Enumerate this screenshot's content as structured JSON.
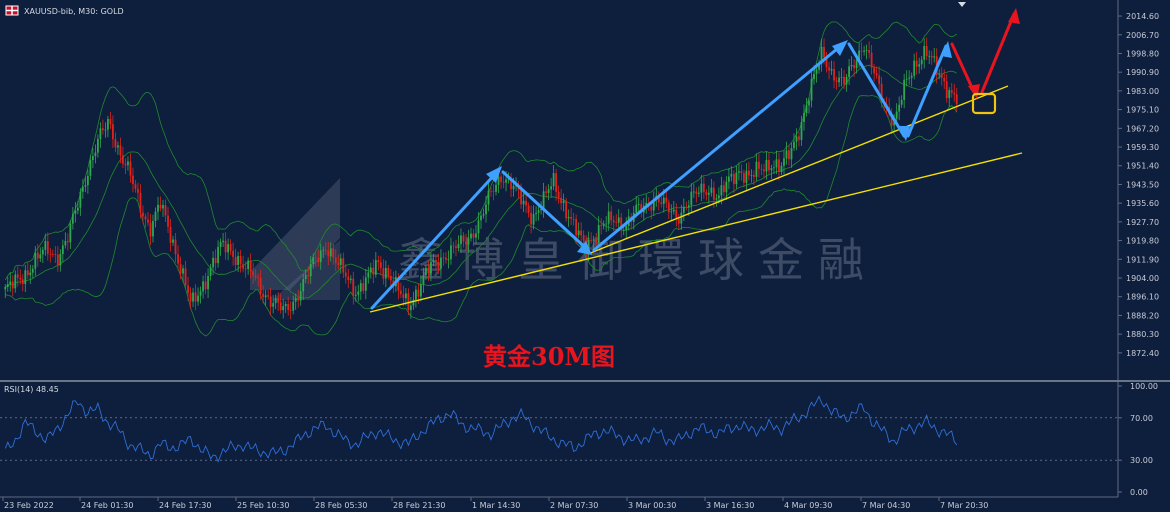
{
  "header": {
    "symbol_info": "XAUUSD-bib, M30:  GOLD",
    "flag_icon": "uk-flag-icon"
  },
  "annotation": "黄金30M图",
  "watermark": "鑫博皇御環球金融",
  "colors": {
    "background": "#0e1e3d",
    "bull_candle": "#2fa84f",
    "bear_candle": "#e0241b",
    "bollinger": "#1f8a2e",
    "trendline": "#f5e000",
    "wave_arrow": "#3fa0ff",
    "forecast_arrow": "#e8141e",
    "target_box": "#f1c40f",
    "rsi_line": "#2f6fd6"
  },
  "chart_data": {
    "type": "line",
    "title": "XAUUSD-bib, M30:  GOLD",
    "y_ticks": [
      "2014.60",
      "2006.70",
      "1998.80",
      "1990.90",
      "1983.00",
      "1975.10",
      "1967.20",
      "1959.30",
      "1951.40",
      "1943.50",
      "1935.60",
      "1927.70",
      "1919.80",
      "1911.90",
      "1904.00",
      "1896.10",
      "1888.20",
      "1880.30",
      "1872.40"
    ],
    "ylim": [
      1866.0,
      2018.0
    ],
    "x_ticks": [
      "23 Feb 2022",
      "24 Feb 01:30",
      "24 Feb 17:30",
      "25 Feb 10:30",
      "28 Feb 05:30",
      "28 Feb 21:30",
      "1 Mar 14:30",
      "2 Mar 07:30",
      "3 Mar 00:30",
      "3 Mar 16:30",
      "4 Mar 09:30",
      "7 Mar 04:30",
      "7 Mar 20:30"
    ],
    "price_path": [
      1899,
      1902,
      1906,
      1912,
      1916,
      1913,
      1920,
      1935,
      1950,
      1962,
      1970,
      1958,
      1948,
      1935,
      1925,
      1935,
      1922,
      1908,
      1892,
      1900,
      1910,
      1918,
      1915,
      1909,
      1905,
      1898,
      1893,
      1890,
      1895,
      1903,
      1912,
      1918,
      1910,
      1905,
      1898,
      1903,
      1911,
      1906,
      1898,
      1893,
      1900,
      1908,
      1912,
      1915,
      1918,
      1922,
      1929,
      1940,
      1948,
      1943,
      1936,
      1930,
      1936,
      1945,
      1935,
      1925,
      1918,
      1922,
      1927,
      1929,
      1926,
      1932,
      1935,
      1938,
      1933,
      1930,
      1936,
      1940,
      1942,
      1938,
      1945,
      1950,
      1946,
      1950,
      1953,
      1950,
      1958,
      1970,
      1985,
      2000,
      1990,
      1985,
      1995,
      2003,
      1990,
      1978,
      1970,
      1985,
      1995,
      2000,
      1992,
      1985,
      1980
    ],
    "rsi": {
      "label": "RSI(14) 48.45",
      "period": 14,
      "last_value": 48.45,
      "levels": [
        70,
        30
      ],
      "y_ticks": [
        "100.00",
        "70.00",
        "30.00",
        "0.00"
      ],
      "ylim": [
        0,
        100
      ],
      "values": [
        38,
        50,
        65,
        58,
        48,
        60,
        72,
        86,
        75,
        78,
        65,
        58,
        45,
        40,
        35,
        45,
        42,
        44,
        50,
        40,
        32,
        38,
        42,
        45,
        40,
        38,
        36,
        40,
        46,
        55,
        60,
        63,
        55,
        48,
        45,
        52,
        58,
        52,
        48,
        45,
        55,
        62,
        70,
        74,
        65,
        60,
        58,
        55,
        62,
        70,
        72,
        64,
        56,
        50,
        45,
        42,
        48,
        55,
        58,
        54,
        50,
        48,
        52,
        56,
        50,
        48,
        55,
        60,
        58,
        55,
        60,
        63,
        58,
        60,
        62,
        60,
        66,
        72,
        80,
        88,
        75,
        70,
        74,
        80,
        65,
        56,
        48,
        58,
        62,
        66,
        60,
        55,
        48
      ]
    }
  }
}
